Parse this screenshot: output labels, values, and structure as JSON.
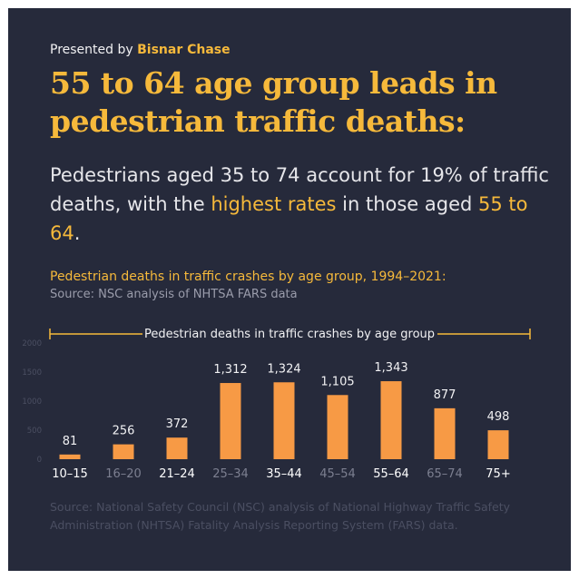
{
  "presented_prefix": "Presented by ",
  "presented_brand": "Bisnar Chase",
  "headline": "55 to 64 age group leads in pedestrian traffic deaths:",
  "subtitle": {
    "part1": "Pedestrians aged 35 to 74 account for 19% of traffic deaths, with the ",
    "hl1": "highest rates",
    "part2": " in those aged ",
    "hl2": "55 to 64",
    "part3": "."
  },
  "chart_caption": "Pedestrian deaths in traffic crashes by age group, 1994–2021:",
  "chart_source": "Source: NSC analysis of NHTSA FARS data",
  "footer_source": "Source: National Safety Council (NSC) analysis of National Highway Traffic Safety Administration (NHTSA) Fatality Analysis Reporting System (FARS) data.",
  "colors": {
    "background": "#262a3b",
    "accent": "#f6b93b",
    "bar": "#f79a45",
    "label_bright": "#ffffff",
    "label_dim": "#7c7f90"
  },
  "chart_data": {
    "type": "bar",
    "title": "Pedestrian deaths in traffic crashes by age group",
    "categories": [
      "10–15",
      "16–20",
      "21–24",
      "25–34",
      "35–44",
      "45–54",
      "55–64",
      "65–74",
      "75+"
    ],
    "values": [
      81,
      256,
      372,
      1312,
      1324,
      1105,
      1343,
      877,
      498
    ],
    "value_labels": [
      "81",
      "256",
      "372",
      "1,312",
      "1,324",
      "1,105",
      "1,343",
      "877",
      "498"
    ],
    "category_label_dim": [
      false,
      true,
      false,
      true,
      false,
      true,
      false,
      true,
      false
    ],
    "ylim": [
      0,
      2000
    ],
    "yticks": [
      "0",
      "500",
      "1000",
      "1500",
      "2000"
    ],
    "grid": false,
    "legend": "none"
  }
}
